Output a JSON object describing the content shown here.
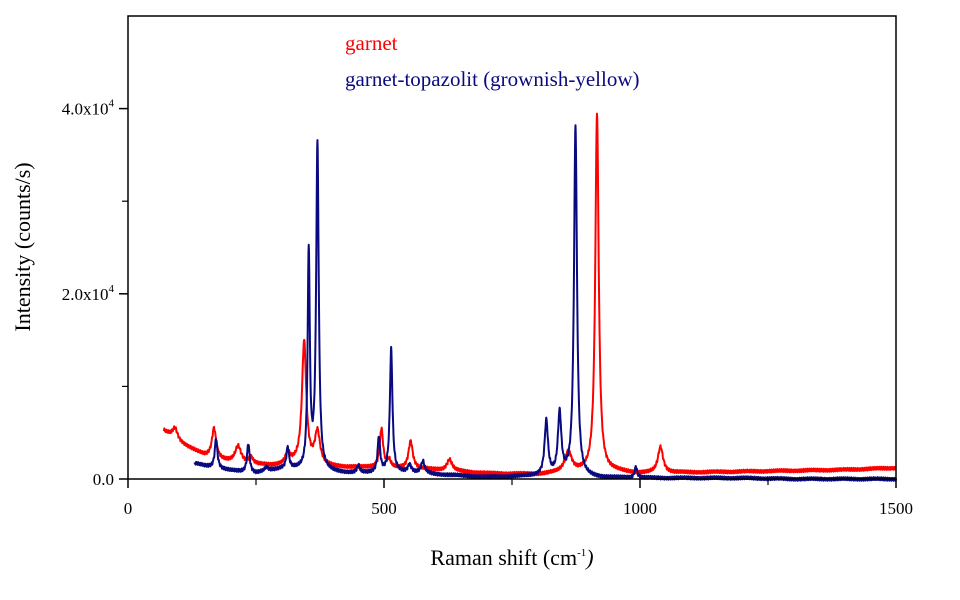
{
  "chart_data": {
    "type": "line",
    "xlabel": "Raman shift (cm",
    "xlabel_sup": "-1",
    "xlabel_close": ")",
    "ylabel": "Intensity (counts/s)",
    "xlim": [
      0,
      1500
    ],
    "ylim": [
      0,
      50000
    ],
    "grid": false,
    "legend_position": "top-center",
    "x_ticks": [
      {
        "value": 0,
        "label": "0"
      },
      {
        "value": 500,
        "label": "500"
      },
      {
        "value": 1000,
        "label": "1000"
      },
      {
        "value": 1500,
        "label": "1500"
      }
    ],
    "y_ticks": [
      {
        "value": 0,
        "label": "0.0",
        "sup": ""
      },
      {
        "value": 20000,
        "label": "2.0x10",
        "sup": "4"
      },
      {
        "value": 40000,
        "label": "4.0x10",
        "sup": "4"
      }
    ],
    "series": [
      {
        "name": "garnet",
        "color": "#ff0000",
        "baseline": [
          [
            70,
            5200
          ],
          [
            100,
            4000
          ],
          [
            150,
            2500
          ],
          [
            200,
            1800
          ],
          [
            280,
            1400
          ],
          [
            330,
            1700
          ],
          [
            400,
            1300
          ],
          [
            480,
            1200
          ],
          [
            600,
            1000
          ],
          [
            700,
            600
          ],
          [
            800,
            500
          ],
          [
            860,
            700
          ],
          [
            950,
            800
          ],
          [
            1000,
            600
          ],
          [
            1100,
            700
          ],
          [
            1200,
            800
          ],
          [
            1300,
            900
          ],
          [
            1400,
            1000
          ],
          [
            1500,
            1200
          ]
        ],
        "peaks": [
          {
            "x": 92,
            "h": 1200,
            "w": 6
          },
          {
            "x": 168,
            "h": 3200,
            "w": 5
          },
          {
            "x": 215,
            "h": 1800,
            "w": 7
          },
          {
            "x": 240,
            "h": 700,
            "w": 5
          },
          {
            "x": 312,
            "h": 1200,
            "w": 5
          },
          {
            "x": 344,
            "h": 13200,
            "w": 5
          },
          {
            "x": 370,
            "h": 3500,
            "w": 6
          },
          {
            "x": 495,
            "h": 4200,
            "w": 4
          },
          {
            "x": 510,
            "h": 800,
            "w": 4
          },
          {
            "x": 552,
            "h": 3000,
            "w": 5
          },
          {
            "x": 628,
            "h": 1200,
            "w": 6
          },
          {
            "x": 860,
            "h": 2200,
            "w": 8
          },
          {
            "x": 916,
            "h": 38700,
            "w": 4
          },
          {
            "x": 1040,
            "h": 2800,
            "w": 6
          }
        ]
      },
      {
        "name": "garnet-topazolit (grownish-yellow)",
        "color": "#0a0a80",
        "baseline": [
          [
            130,
            1700
          ],
          [
            150,
            1400
          ],
          [
            200,
            900
          ],
          [
            250,
            600
          ],
          [
            300,
            1100
          ],
          [
            400,
            700
          ],
          [
            450,
            600
          ],
          [
            550,
            700
          ],
          [
            600,
            500
          ],
          [
            700,
            200
          ],
          [
            800,
            300
          ],
          [
            900,
            150
          ],
          [
            1000,
            100
          ],
          [
            1100,
            100
          ],
          [
            1200,
            100
          ],
          [
            1300,
            0
          ],
          [
            1500,
            0
          ]
        ],
        "peaks": [
          {
            "x": 172,
            "h": 3200,
            "w": 3
          },
          {
            "x": 235,
            "h": 3100,
            "w": 3
          },
          {
            "x": 270,
            "h": 400,
            "w": 4
          },
          {
            "x": 312,
            "h": 2300,
            "w": 3
          },
          {
            "x": 353,
            "h": 23500,
            "w": 2.5
          },
          {
            "x": 370,
            "h": 35200,
            "w": 3
          },
          {
            "x": 450,
            "h": 800,
            "w": 3
          },
          {
            "x": 490,
            "h": 3800,
            "w": 3
          },
          {
            "x": 514,
            "h": 13300,
            "w": 3
          },
          {
            "x": 550,
            "h": 800,
            "w": 4
          },
          {
            "x": 576,
            "h": 1300,
            "w": 4
          },
          {
            "x": 817,
            "h": 5900,
            "w": 4
          },
          {
            "x": 843,
            "h": 6700,
            "w": 4
          },
          {
            "x": 874,
            "h": 37900,
            "w": 3.5
          },
          {
            "x": 992,
            "h": 1200,
            "w": 3
          }
        ]
      }
    ]
  }
}
